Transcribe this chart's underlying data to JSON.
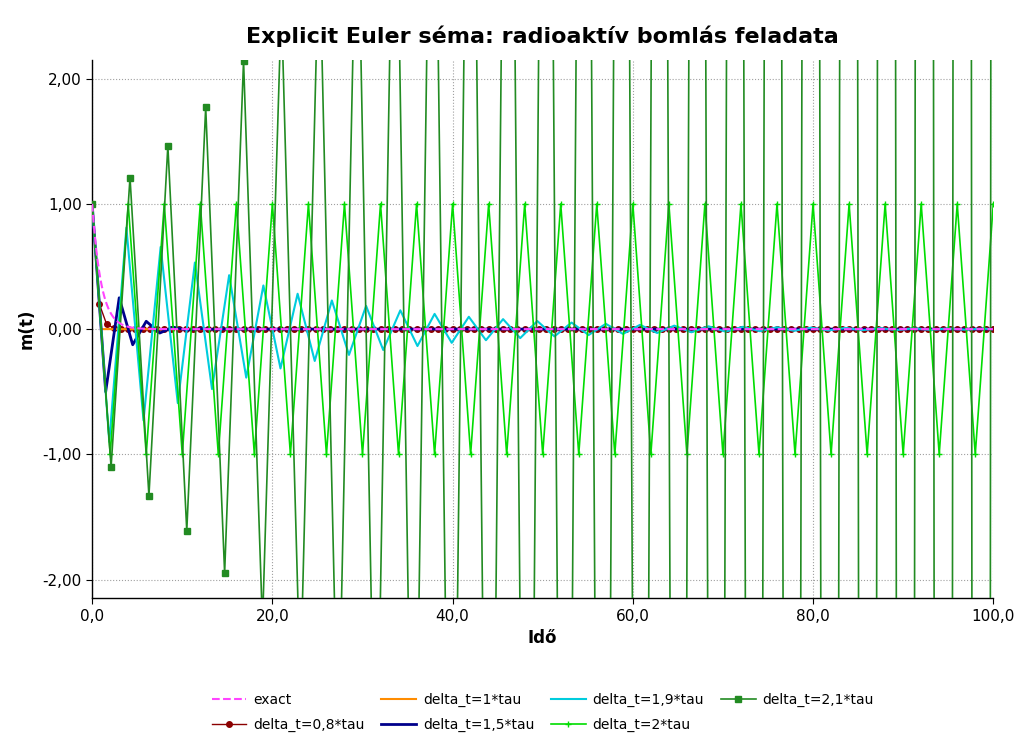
{
  "title": "Explicit Euler séma: radioaktív bomlás feladata",
  "xlabel": "Idő",
  "ylabel": "m(t)",
  "xlim": [
    0,
    100
  ],
  "ylim": [
    -2.15,
    2.15
  ],
  "ytick_vals": [
    -2.0,
    -1.0,
    0.0,
    1.0,
    2.0
  ],
  "ytick_labels": [
    "-2,00",
    "-1,00",
    "0,00",
    "1,00",
    "2,00"
  ],
  "xtick_vals": [
    0.0,
    20.0,
    40.0,
    60.0,
    80.0,
    100.0
  ],
  "xtick_labels": [
    "0,0",
    "20,0",
    "40,0",
    "60,0",
    "80,0",
    "100,0"
  ],
  "tau": 1.0,
  "t_end": 100,
  "series": [
    {
      "label": "exact",
      "dt_factor": 0.0,
      "color": "#FF44FF",
      "marker": "none",
      "lw": 1.5,
      "ms": 0,
      "ls": "--"
    },
    {
      "label": "delta_t=0,8*tau",
      "dt_factor": 0.8,
      "color": "#8B0000",
      "marker": "o",
      "lw": 1.0,
      "ms": 4,
      "ls": "-"
    },
    {
      "label": "delta_t=1*tau",
      "dt_factor": 1.0,
      "color": "#FF8C00",
      "marker": "none",
      "lw": 1.5,
      "ms": 0,
      "ls": "-"
    },
    {
      "label": "delta_t=1,5*tau",
      "dt_factor": 1.5,
      "color": "#00008B",
      "marker": "none",
      "lw": 2.0,
      "ms": 0,
      "ls": "-"
    },
    {
      "label": "delta_t=1,9*tau",
      "dt_factor": 1.9,
      "color": "#00CCDD",
      "marker": "none",
      "lw": 1.5,
      "ms": 0,
      "ls": "-"
    },
    {
      "label": "delta_t=2*tau",
      "dt_factor": 2.0,
      "color": "#00DD00",
      "marker": "+",
      "lw": 1.2,
      "ms": 5,
      "ls": "-"
    },
    {
      "label": "delta_t=2,1*tau",
      "dt_factor": 2.1,
      "color": "#228B22",
      "marker": "s",
      "lw": 1.2,
      "ms": 4,
      "ls": "-"
    }
  ],
  "bg_color": "#FFFFFF",
  "grid_color": "#A0A0A0",
  "grid_ls": ":",
  "title_fontsize": 16,
  "label_fontsize": 12,
  "tick_fontsize": 11,
  "legend_fontsize": 10
}
